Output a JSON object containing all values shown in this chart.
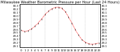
{
  "title": "Milwaukee Weather Barometric Pressure per Hour (Last 24 Hours)",
  "hours": [
    0,
    1,
    2,
    3,
    4,
    5,
    6,
    7,
    8,
    9,
    10,
    11,
    12,
    13,
    14,
    15,
    16,
    17,
    18,
    19,
    20,
    21,
    22,
    23
  ],
  "pressure": [
    29.56,
    29.52,
    29.55,
    29.6,
    29.68,
    29.78,
    29.9,
    30.03,
    30.13,
    30.2,
    30.24,
    30.25,
    30.22,
    30.12,
    29.96,
    29.78,
    29.58,
    29.42,
    29.28,
    29.2,
    29.16,
    29.14,
    29.16,
    29.18
  ],
  "line_color": "#ff0000",
  "marker_color": "#000000",
  "background_color": "#ffffff",
  "grid_color": "#aaaaaa",
  "ylim": [
    29.05,
    30.35
  ],
  "ytick_values": [
    29.1,
    29.2,
    29.3,
    29.4,
    29.5,
    29.6,
    29.7,
    29.8,
    29.9,
    30.0,
    30.1,
    30.2,
    30.3
  ],
  "title_fontsize": 3.8,
  "tick_fontsize": 2.8,
  "vgrid_positions": [
    3,
    7,
    11,
    15,
    19,
    23
  ]
}
